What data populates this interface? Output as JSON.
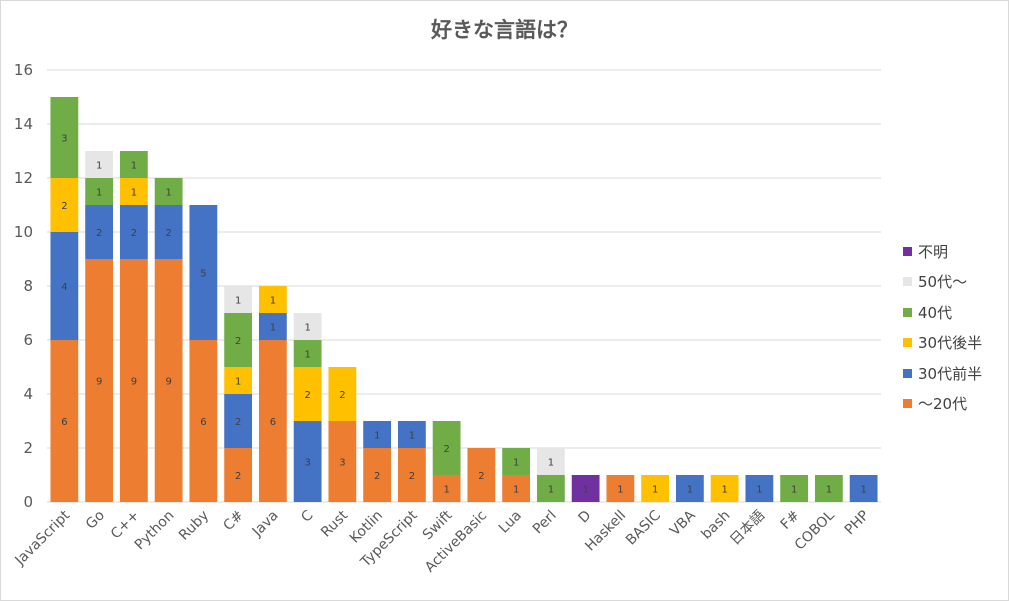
{
  "chart_data": {
    "type": "bar",
    "stacked": true,
    "title": "好きな言語は？",
    "ylim": [
      0,
      16
    ],
    "yticks": [
      0,
      2,
      4,
      6,
      8,
      10,
      12,
      14,
      16
    ],
    "grid": true,
    "legend_position": "right",
    "categories": [
      "JavaScript",
      "Go",
      "C++",
      "Python",
      "Ruby",
      "C#",
      "Java",
      "C",
      "Rust",
      "Kotlin",
      "TypeScript",
      "Swift",
      "ActiveBasic",
      "Lua",
      "Perl",
      "D",
      "Haskell",
      "BASIC",
      "VBA",
      "bash",
      "日本語",
      "F#",
      "COBOL",
      "PHP"
    ],
    "series": [
      {
        "name": "〜20代",
        "color": "#ed7d31",
        "values": [
          6,
          9,
          9,
          9,
          6,
          2,
          6,
          0,
          3,
          2,
          2,
          1,
          2,
          1,
          0,
          0,
          1,
          0,
          0,
          0,
          0,
          0,
          0,
          0
        ]
      },
      {
        "name": "30代前半",
        "color": "#4472c4",
        "values": [
          4,
          2,
          2,
          2,
          5,
          2,
          1,
          3,
          0,
          1,
          1,
          0,
          0,
          0,
          0,
          0,
          0,
          0,
          1,
          0,
          1,
          0,
          0,
          1
        ]
      },
      {
        "name": "30代後半",
        "color": "#ffc000",
        "values": [
          2,
          0,
          1,
          0,
          0,
          1,
          1,
          2,
          2,
          0,
          0,
          0,
          0,
          0,
          0,
          0,
          0,
          1,
          0,
          1,
          0,
          0,
          0,
          0
        ]
      },
      {
        "name": "40代",
        "color": "#70ad47",
        "values": [
          3,
          1,
          1,
          1,
          0,
          2,
          0,
          1,
          0,
          0,
          0,
          2,
          0,
          1,
          1,
          0,
          0,
          0,
          0,
          0,
          0,
          1,
          1,
          0
        ]
      },
      {
        "name": "50代〜",
        "color": "#e7e6e6",
        "values": [
          0,
          1,
          0,
          0,
          0,
          1,
          0,
          1,
          0,
          0,
          0,
          0,
          0,
          0,
          1,
          0,
          0,
          0,
          0,
          0,
          0,
          0,
          0,
          0
        ]
      },
      {
        "name": "不明",
        "color": "#7030a0",
        "values": [
          0,
          0,
          0,
          0,
          0,
          0,
          0,
          0,
          0,
          0,
          0,
          0,
          0,
          0,
          0,
          1,
          0,
          0,
          0,
          0,
          0,
          0,
          0,
          0
        ]
      }
    ]
  }
}
